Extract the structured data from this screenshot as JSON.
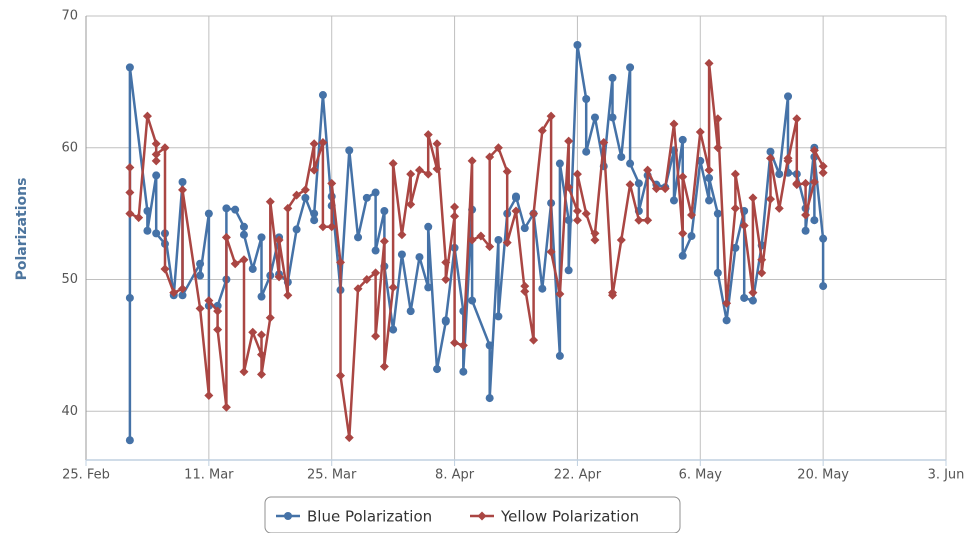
{
  "chart_data": {
    "type": "line",
    "ylabel": "Polarizations",
    "ylim": [
      36.3,
      70
    ],
    "yticks": [
      40,
      50,
      60,
      70
    ],
    "xlim": [
      "02-25",
      "06-03"
    ],
    "xticks": [
      {
        "value": "02-25",
        "label": "25. Feb"
      },
      {
        "value": "03-11",
        "label": "11. Mar"
      },
      {
        "value": "03-25",
        "label": "25. Mar"
      },
      {
        "value": "04-08",
        "label": "8. Apr"
      },
      {
        "value": "04-22",
        "label": "22. Apr"
      },
      {
        "value": "05-06",
        "label": "6. May"
      },
      {
        "value": "05-20",
        "label": "20. May"
      },
      {
        "value": "06-03",
        "label": "3. Jun"
      }
    ],
    "grid": true,
    "legend": "bottom",
    "series": [
      {
        "name": "Blue Polarization",
        "color": "#4572a7",
        "marker": "circle",
        "x": [
          "03-02",
          "03-02",
          "03-02",
          "03-04",
          "03-04",
          "03-05",
          "03-05",
          "03-06",
          "03-06",
          "03-07",
          "03-08",
          "03-08",
          "03-10",
          "03-10",
          "03-11",
          "03-11",
          "03-12",
          "03-13",
          "03-13",
          "03-14",
          "03-15",
          "03-15",
          "03-16",
          "03-17",
          "03-17",
          "03-18",
          "03-19",
          "03-19",
          "03-20",
          "03-21",
          "03-22",
          "03-23",
          "03-23",
          "03-24",
          "03-25",
          "03-25",
          "03-26",
          "03-27",
          "03-28",
          "03-29",
          "03-30",
          "03-30",
          "03-31",
          "03-31",
          "04-01",
          "04-02",
          "04-03",
          "04-04",
          "04-05",
          "04-05",
          "04-06",
          "04-07",
          "04-07",
          "04-08",
          "04-09",
          "04-09",
          "04-10",
          "04-10",
          "04-12",
          "04-12",
          "04-13",
          "04-13",
          "04-14",
          "04-15",
          "04-15",
          "04-16",
          "04-17",
          "04-18",
          "04-19",
          "04-20",
          "04-20",
          "04-21",
          "04-21",
          "04-22",
          "04-23",
          "04-23",
          "04-24",
          "04-25",
          "04-26",
          "04-26",
          "04-27",
          "04-28",
          "04-28",
          "04-29",
          "04-29",
          "04-30",
          "05-01",
          "05-02",
          "05-03",
          "05-03",
          "05-04",
          "05-04",
          "05-05",
          "05-06",
          "05-07",
          "05-07",
          "05-08",
          "05-08",
          "05-09",
          "05-10",
          "05-11",
          "05-11",
          "05-12",
          "05-13",
          "05-14",
          "05-15",
          "05-16",
          "05-16",
          "05-17",
          "05-18",
          "05-18",
          "05-19",
          "05-19",
          "05-19",
          "05-20",
          "05-20"
        ],
        "values": [
          37.8,
          48.6,
          66.1,
          55.2,
          53.7,
          57.9,
          53.5,
          52.7,
          53.5,
          48.8,
          57.4,
          48.8,
          51.2,
          50.3,
          55.0,
          48.0,
          48.0,
          50.0,
          55.4,
          55.3,
          54.0,
          53.4,
          50.8,
          53.2,
          48.7,
          50.3,
          53.2,
          50.4,
          49.8,
          53.8,
          56.2,
          54.5,
          55.0,
          64.0,
          55.6,
          56.3,
          49.2,
          59.8,
          53.2,
          56.2,
          56.6,
          52.2,
          55.2,
          51.0,
          46.2,
          51.9,
          47.6,
          51.7,
          49.4,
          54.0,
          43.2,
          46.8,
          46.9,
          52.4,
          47.6,
          43.0,
          55.3,
          48.4,
          45.0,
          41.0,
          53.0,
          47.2,
          55.0,
          56.2,
          56.3,
          53.9,
          55.0,
          49.3,
          55.8,
          44.2,
          58.8,
          54.5,
          50.7,
          67.8,
          63.7,
          59.7,
          62.3,
          58.6,
          65.3,
          62.3,
          59.3,
          66.1,
          58.8,
          57.3,
          55.2,
          57.9,
          57.2,
          57.0,
          59.8,
          56.0,
          60.6,
          51.8,
          53.3,
          59.0,
          56.0,
          57.7,
          55.0,
          50.5,
          46.9,
          52.4,
          55.2,
          48.6,
          48.4,
          52.6,
          59.7,
          58.0,
          63.9,
          58.1,
          58.0,
          55.4,
          53.7,
          60.0,
          54.5,
          59.3,
          53.1,
          49.5
        ]
      },
      {
        "name": "Yellow Polarization",
        "color": "#aa4643",
        "marker": "diamond",
        "x": [
          "03-02",
          "03-02",
          "03-02",
          "03-03",
          "03-04",
          "03-05",
          "03-05",
          "03-05",
          "03-06",
          "03-06",
          "03-07",
          "03-08",
          "03-08",
          "03-10",
          "03-11",
          "03-11",
          "03-12",
          "03-12",
          "03-13",
          "03-13",
          "03-14",
          "03-15",
          "03-15",
          "03-16",
          "03-17",
          "03-17",
          "03-17",
          "03-18",
          "03-18",
          "03-19",
          "03-19",
          "03-20",
          "03-20",
          "03-21",
          "03-22",
          "03-23",
          "03-23",
          "03-24",
          "03-24",
          "03-25",
          "03-25",
          "03-26",
          "03-26",
          "03-27",
          "03-28",
          "03-29",
          "03-30",
          "03-30",
          "03-31",
          "03-31",
          "04-01",
          "04-01",
          "04-02",
          "04-03",
          "04-03",
          "04-04",
          "04-05",
          "04-05",
          "04-06",
          "04-06",
          "04-07",
          "04-07",
          "04-08",
          "04-08",
          "04-08",
          "04-09",
          "04-10",
          "04-10",
          "04-11",
          "04-12",
          "04-12",
          "04-13",
          "04-14",
          "04-14",
          "04-15",
          "04-16",
          "04-16",
          "04-17",
          "04-17",
          "04-18",
          "04-19",
          "04-19",
          "04-20",
          "04-21",
          "04-21",
          "04-22",
          "04-22",
          "04-22",
          "04-23",
          "04-24",
          "04-24",
          "04-25",
          "04-26",
          "04-26",
          "04-27",
          "04-28",
          "04-29",
          "04-30",
          "04-30",
          "05-01",
          "05-02",
          "05-03",
          "05-04",
          "05-04",
          "05-05",
          "05-06",
          "05-07",
          "05-07",
          "05-08",
          "05-08",
          "05-09",
          "05-10",
          "05-10",
          "05-11",
          "05-12",
          "05-12",
          "05-13",
          "05-13",
          "05-14",
          "05-14",
          "05-15",
          "05-16",
          "05-16",
          "05-17",
          "05-17",
          "05-17",
          "05-18",
          "05-18",
          "05-19",
          "05-19",
          "05-20",
          "05-20"
        ],
        "values": [
          56.6,
          58.5,
          55.0,
          54.7,
          62.4,
          60.3,
          59.0,
          59.5,
          60.0,
          50.8,
          49.0,
          49.3,
          56.8,
          47.8,
          41.2,
          48.4,
          47.6,
          46.2,
          40.3,
          53.2,
          51.2,
          51.5,
          43.0,
          46.0,
          44.3,
          45.8,
          42.8,
          47.1,
          55.9,
          50.2,
          53.0,
          48.8,
          55.4,
          56.4,
          56.8,
          60.3,
          58.3,
          60.4,
          54.0,
          54.0,
          57.3,
          51.3,
          42.7,
          38.0,
          49.3,
          50.0,
          50.5,
          45.7,
          52.9,
          43.4,
          49.4,
          58.8,
          53.4,
          58.0,
          55.7,
          58.3,
          58.0,
          61.0,
          58.4,
          60.3,
          51.3,
          50.0,
          54.8,
          55.5,
          45.2,
          45.0,
          59.0,
          53.0,
          53.3,
          52.5,
          59.3,
          60.0,
          58.2,
          52.8,
          55.2,
          49.1,
          49.5,
          45.4,
          55.0,
          61.3,
          62.4,
          52.1,
          48.9,
          60.5,
          57.0,
          55.2,
          54.5,
          58.0,
          55.0,
          53.0,
          53.5,
          60.4,
          49.0,
          48.8,
          53.0,
          57.2,
          54.5,
          54.5,
          58.3,
          56.9,
          56.9,
          61.8,
          53.5,
          57.8,
          54.9,
          61.2,
          58.3,
          66.4,
          60.0,
          62.2,
          48.2,
          55.4,
          58.0,
          54.1,
          49.0,
          56.2,
          51.5,
          50.5,
          56.1,
          59.2,
          55.4,
          59.2,
          59.0,
          62.2,
          57.3,
          57.2,
          57.3,
          54.9,
          57.4,
          59.8,
          58.6,
          58.1
        ]
      }
    ]
  }
}
